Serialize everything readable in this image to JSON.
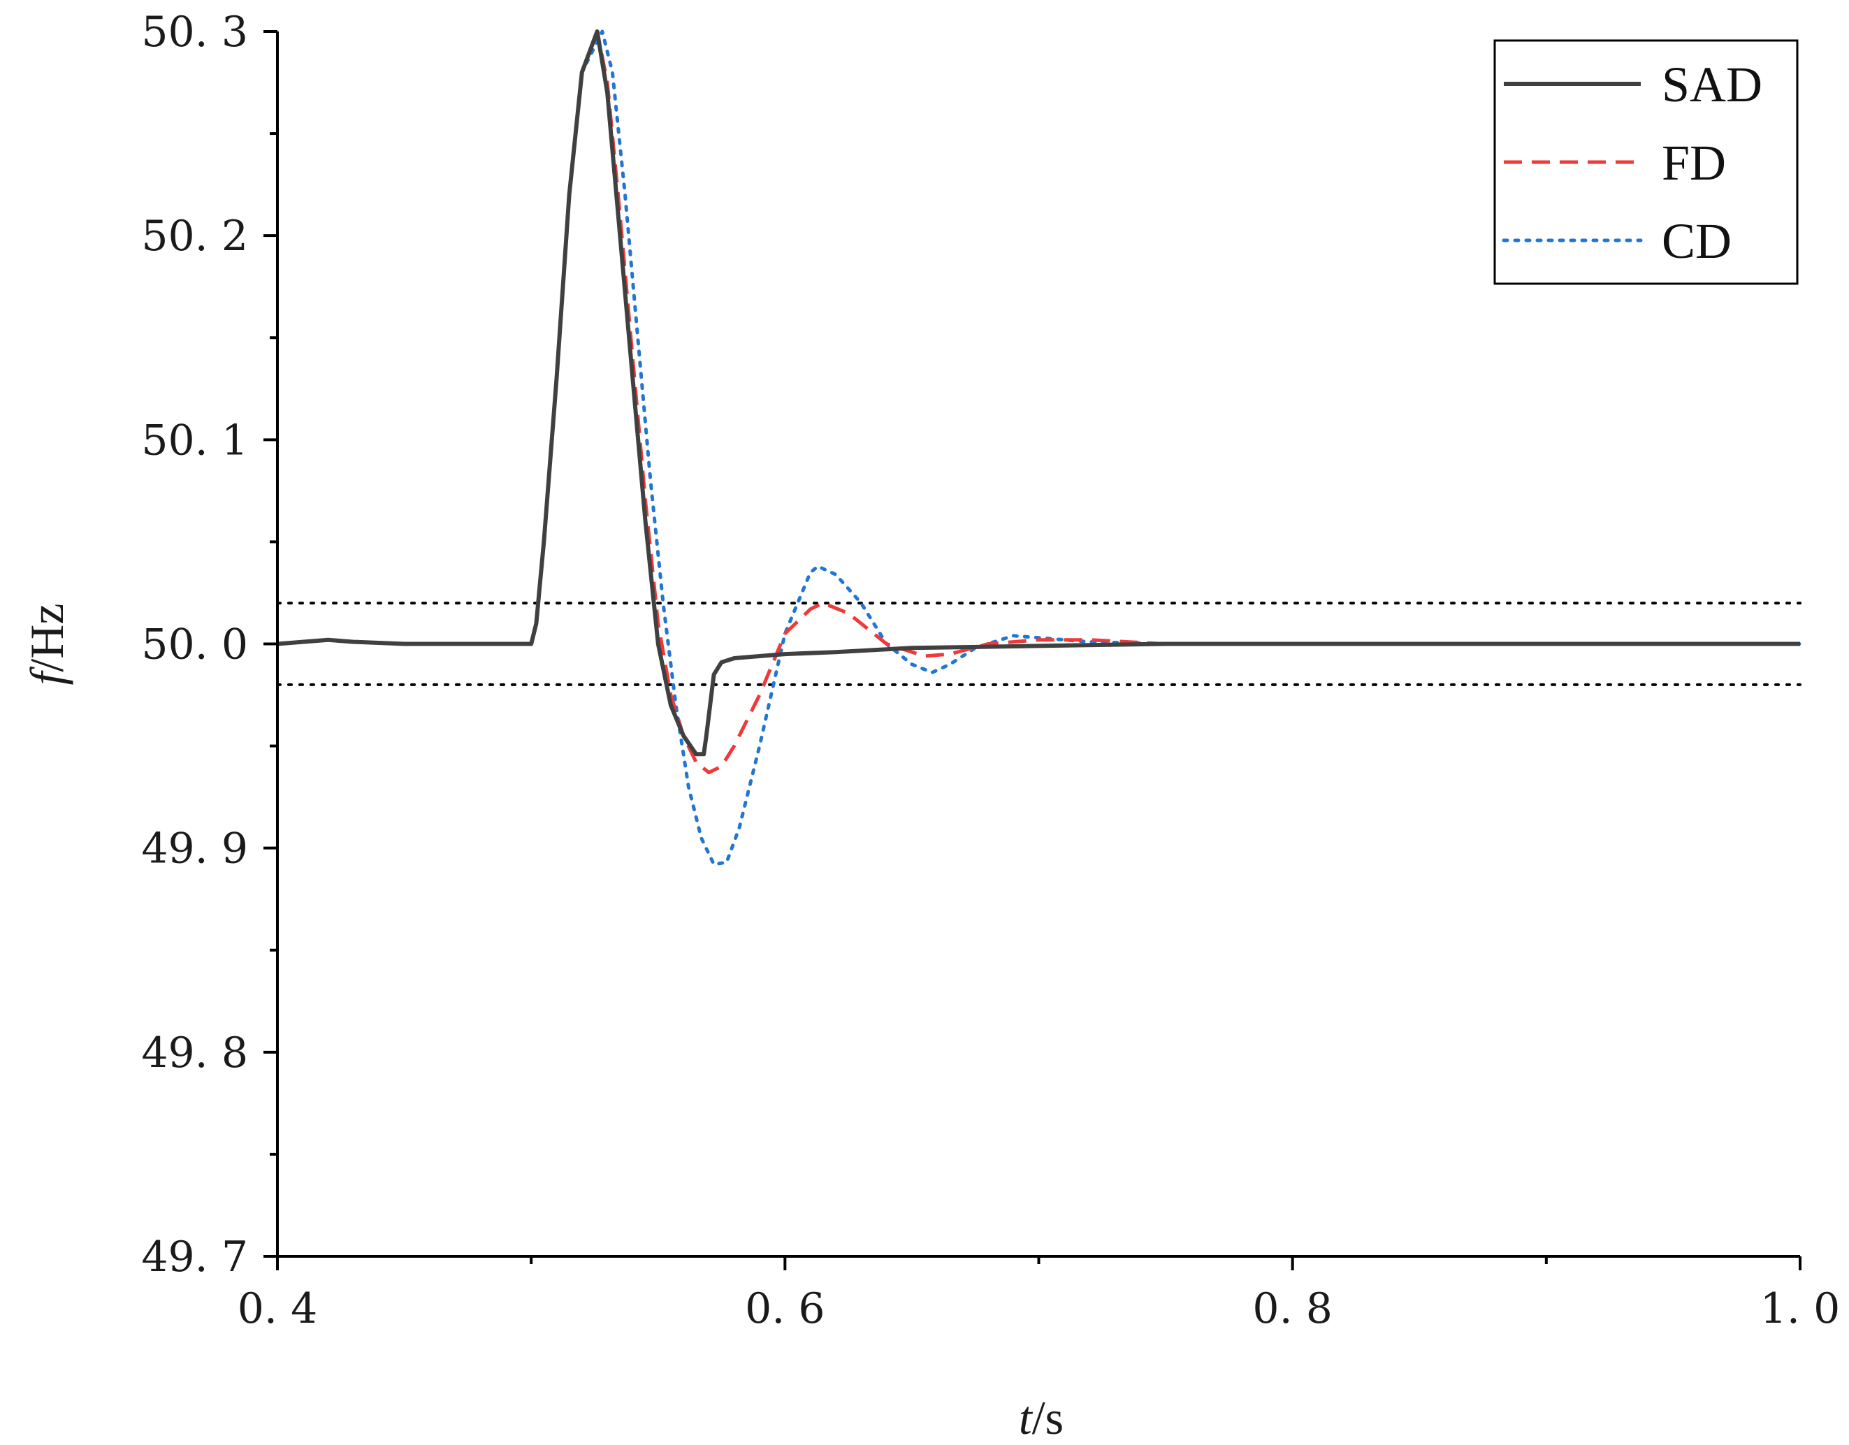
{
  "chart_data": {
    "type": "line",
    "xlabel": "t/s",
    "xlabel_parts": {
      "var": "t",
      "unit": "/s"
    },
    "ylabel": "f/Hz",
    "ylabel_parts": {
      "var": "f",
      "unit": "/Hz"
    },
    "xlim": [
      0.4,
      1.0
    ],
    "ylim": [
      49.7,
      50.3
    ],
    "x_ticks": [
      0.4,
      0.6,
      0.8,
      1.0
    ],
    "x_tick_labels": [
      "0. 4",
      "0. 6",
      "0. 8",
      "1. 0"
    ],
    "x_minor_ticks": [
      0.5,
      0.7,
      0.9
    ],
    "y_ticks": [
      49.7,
      49.8,
      49.9,
      50.0,
      50.1,
      50.2,
      50.3
    ],
    "y_tick_labels": [
      "49. 7",
      "49. 8",
      "49. 9",
      "50. 0",
      "50. 1",
      "50. 2",
      "50. 3"
    ],
    "y_minor_ticks": [
      49.75,
      49.85,
      49.95,
      50.05,
      50.15,
      50.25
    ],
    "grid": false,
    "legend_position": "top-right",
    "reference_lines": [
      {
        "y": 50.02,
        "style": "dotted",
        "color": "#000000"
      },
      {
        "y": 49.98,
        "style": "dotted",
        "color": "#000000"
      }
    ],
    "series": [
      {
        "name": "SAD",
        "color": "#404040",
        "style": "solid",
        "x": [
          0.4,
          0.41,
          0.42,
          0.43,
          0.45,
          0.48,
          0.5,
          0.502,
          0.505,
          0.51,
          0.515,
          0.52,
          0.526,
          0.53,
          0.535,
          0.54,
          0.545,
          0.55,
          0.555,
          0.56,
          0.565,
          0.568,
          0.569,
          0.572,
          0.575,
          0.58,
          0.59,
          0.6,
          0.62,
          0.65,
          0.7,
          0.75,
          0.8,
          0.9,
          1.0
        ],
        "y": [
          50.0,
          50.001,
          50.002,
          50.001,
          50.0,
          50.0,
          50.0,
          50.01,
          50.05,
          50.13,
          50.22,
          50.28,
          50.3,
          50.27,
          50.2,
          50.13,
          50.06,
          50.0,
          49.97,
          49.955,
          49.946,
          49.946,
          49.955,
          49.985,
          49.991,
          49.993,
          49.994,
          49.995,
          49.996,
          49.998,
          49.999,
          50.0,
          50.0,
          50.0,
          50.0
        ]
      },
      {
        "name": "FD",
        "color": "#ee3a3a",
        "style": "dashed",
        "x": [
          0.4,
          0.41,
          0.42,
          0.43,
          0.45,
          0.48,
          0.5,
          0.502,
          0.505,
          0.51,
          0.515,
          0.52,
          0.526,
          0.53,
          0.535,
          0.54,
          0.545,
          0.55,
          0.555,
          0.56,
          0.565,
          0.57,
          0.575,
          0.58,
          0.59,
          0.6,
          0.61,
          0.615,
          0.625,
          0.64,
          0.655,
          0.665,
          0.68,
          0.7,
          0.72,
          0.75,
          0.8,
          0.9,
          1.0
        ],
        "y": [
          50.0,
          50.001,
          50.002,
          50.001,
          50.0,
          50.0,
          50.0,
          50.01,
          50.05,
          50.13,
          50.22,
          50.28,
          50.3,
          50.275,
          50.21,
          50.14,
          50.07,
          50.01,
          49.975,
          49.955,
          49.942,
          49.937,
          49.94,
          49.95,
          49.975,
          50.005,
          50.017,
          50.02,
          50.015,
          50.0,
          49.994,
          49.995,
          50.0,
          50.002,
          50.002,
          50.0,
          50.0,
          50.0,
          50.0
        ]
      },
      {
        "name": "CD",
        "color": "#2276d2",
        "style": "dotted",
        "x": [
          0.4,
          0.41,
          0.42,
          0.43,
          0.45,
          0.48,
          0.5,
          0.502,
          0.505,
          0.51,
          0.515,
          0.52,
          0.528,
          0.532,
          0.537,
          0.542,
          0.547,
          0.552,
          0.557,
          0.562,
          0.567,
          0.572,
          0.577,
          0.582,
          0.59,
          0.6,
          0.61,
          0.613,
          0.62,
          0.63,
          0.64,
          0.65,
          0.658,
          0.665,
          0.675,
          0.69,
          0.7,
          0.72,
          0.75,
          0.8,
          0.9,
          1.0
        ],
        "y": [
          50.0,
          50.001,
          50.002,
          50.001,
          50.0,
          50.0,
          50.0,
          50.01,
          50.05,
          50.13,
          50.22,
          50.28,
          50.3,
          50.28,
          50.22,
          50.15,
          50.08,
          50.02,
          49.97,
          49.93,
          49.905,
          49.892,
          49.893,
          49.91,
          49.95,
          50.005,
          50.035,
          50.038,
          50.034,
          50.02,
          50.0,
          49.99,
          49.986,
          49.99,
          49.998,
          50.004,
          50.003,
          50.001,
          50.0,
          50.0,
          50.0,
          50.0
        ]
      }
    ]
  }
}
